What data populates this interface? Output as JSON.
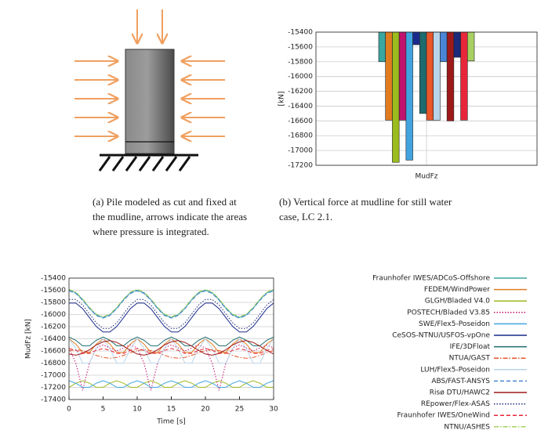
{
  "captions": [
    [
      "(a) Pile modeled as cut and fixed at",
      "the mudline, arrows indicate the areas",
      "where pressure is integrated."
    ],
    [
      "(b) Vertical force at mudline for still water",
      "case, LC 2.1."
    ]
  ],
  "chart_data": [
    {
      "type": "bar",
      "ylabel": "[kN]",
      "categories": [
        "MudFz"
      ],
      "ylim": [
        -17200,
        -15400
      ],
      "yticks": [
        -17200,
        -17000,
        -16800,
        -16600,
        -16400,
        -16200,
        -16000,
        -15800,
        -15600,
        -15400
      ],
      "grid": true,
      "series": [
        {
          "color": "#3aa6a0",
          "values": [
            -15800
          ]
        },
        {
          "color": "#e07b20",
          "values": [
            -16590
          ]
        },
        {
          "color": "#9bbb1e",
          "values": [
            -17160
          ]
        },
        {
          "color": "#c0136e",
          "values": [
            -16590
          ]
        },
        {
          "color": "#41a4e0",
          "values": [
            -17130
          ]
        },
        {
          "color": "#1a2a8c",
          "values": [
            -15570
          ]
        },
        {
          "color": "#1d6b6e",
          "values": [
            -16500
          ]
        },
        {
          "color": "#e8562a",
          "values": [
            -16590
          ]
        },
        {
          "color": "#b8d4ea",
          "values": [
            -16590
          ]
        },
        {
          "color": "#4a86d6",
          "values": [
            -15800
          ]
        },
        {
          "color": "#9e1a1a",
          "values": [
            -16600
          ]
        },
        {
          "color": "#1b2a7a",
          "values": [
            -15740
          ]
        },
        {
          "color": "#e8263a",
          "values": [
            -16590
          ]
        },
        {
          "color": "#a8d060",
          "values": [
            -15790
          ]
        }
      ]
    },
    {
      "type": "line",
      "xlabel": "Time [s]",
      "ylabel": "MudFz [kN]",
      "x": [
        0,
        1,
        2,
        3,
        4,
        5,
        6,
        7,
        8,
        9,
        10,
        11,
        12,
        13,
        14,
        15,
        16,
        17,
        18,
        19,
        20,
        21,
        22,
        23,
        24,
        25,
        26,
        27,
        28,
        29,
        30
      ],
      "xlim": [
        0,
        30
      ],
      "xticks": [
        0,
        5,
        10,
        15,
        20,
        25,
        30
      ],
      "ylim": [
        -17400,
        -15400
      ],
      "yticks": [
        -17400,
        -17200,
        -17000,
        -16800,
        -16600,
        -16400,
        -16200,
        -16000,
        -15800,
        -15600,
        -15400
      ],
      "grid": true,
      "legend": "right",
      "series": [
        {
          "name": "Fraunhofer IWES/ADCoS-Offshore",
          "color": "#3aa6a0",
          "dash": "solid",
          "values": [
            -15600,
            -15643,
            -15755,
            -15895,
            -16007,
            -16050,
            -16007,
            -15895,
            -15755,
            -15643,
            -15600,
            -15643,
            -15755,
            -15895,
            -16007,
            -16050,
            -16007,
            -15895,
            -15755,
            -15643,
            -15600,
            -15643,
            -15755,
            -15895,
            -16007,
            -16050,
            -16007,
            -15895,
            -15755,
            -15643,
            -15600
          ]
        },
        {
          "name": "FEDEM/WindPower",
          "color": "#e07b20",
          "dash": "solid",
          "values": [
            -16400,
            -16486,
            -16626,
            -16626,
            -16486,
            -16400,
            -16486,
            -16626,
            -16626,
            -16486,
            -16400,
            -16486,
            -16626,
            -16626,
            -16486,
            -16400,
            -16486,
            -16626,
            -16626,
            -16486,
            -16400,
            -16486,
            -16626,
            -16626,
            -16486,
            -16400,
            -16486,
            -16626,
            -16626,
            -16486,
            -16400
          ]
        },
        {
          "name": "GLGH/Bladed V4.0",
          "color": "#9bbb1e",
          "dash": "solid",
          "values": [
            -17199,
            -17131,
            -17090,
            -17131,
            -17199,
            -17199,
            -17131,
            -17090,
            -17131,
            -17199,
            -17199,
            -17131,
            -17090,
            -17131,
            -17199,
            -17199,
            -17131,
            -17090,
            -17131,
            -17199,
            -17199,
            -17131,
            -17090,
            -17131,
            -17199,
            -17199,
            -17131,
            -17090,
            -17131,
            -17199,
            -17199
          ]
        },
        {
          "name": "POSTECH/Bladed V3.85",
          "color": "#c0136e",
          "dash": "dotted",
          "values": [
            -16550,
            -16800,
            -17250,
            -16800,
            -16550,
            -16500,
            -16550,
            -16600,
            -16550,
            -16500,
            -16550,
            -16800,
            -17250,
            -16800,
            -16550,
            -16500,
            -16550,
            -16600,
            -16550,
            -16500,
            -16550,
            -16800,
            -17250,
            -16800,
            -16550,
            -16500,
            -16550,
            -16600,
            -16550,
            -16500,
            -16550
          ]
        },
        {
          "name": "SWE/Flex5-Poseidon",
          "color": "#41a4e0",
          "dash": "solid",
          "values": [
            -17090,
            -17131,
            -17199,
            -17199,
            -17131,
            -17090,
            -17131,
            -17199,
            -17199,
            -17131,
            -17090,
            -17131,
            -17199,
            -17199,
            -17131,
            -17090,
            -17131,
            -17199,
            -17199,
            -17131,
            -17090,
            -17131,
            -17199,
            -17199,
            -17131,
            -17090,
            -17131,
            -17199,
            -17199,
            -17131,
            -17090
          ]
        },
        {
          "name": "CeSOS-NTNU/USFOS-vpOne",
          "color": "#1a2a8c",
          "dash": "solid",
          "values": [
            -15812,
            -15812,
            -15903,
            -16050,
            -16197,
            -16288,
            -16288,
            -16197,
            -16050,
            -15903,
            -15812,
            -15812,
            -15903,
            -16050,
            -16197,
            -16288,
            -16288,
            -16197,
            -16050,
            -15903,
            -15812,
            -15812,
            -15903,
            -16050,
            -16197,
            -16288,
            -16288,
            -16197,
            -16050,
            -15903,
            -15812
          ]
        },
        {
          "name": "IFE/3DFloat",
          "color": "#1d6b6e",
          "dash": "solid",
          "values": [
            -16370,
            -16425,
            -16515,
            -16515,
            -16425,
            -16370,
            -16425,
            -16515,
            -16515,
            -16425,
            -16370,
            -16425,
            -16515,
            -16515,
            -16425,
            -16370,
            -16425,
            -16515,
            -16515,
            -16425,
            -16370,
            -16425,
            -16515,
            -16515,
            -16425,
            -16370,
            -16425,
            -16515,
            -16515,
            -16425,
            -16370
          ]
        },
        {
          "name": "NTUA/GAST",
          "color": "#e8562a",
          "dash": "dashdot",
          "values": [
            -16593,
            -16580,
            -16593,
            -16628,
            -16672,
            -16707,
            -16720,
            -16707,
            -16672,
            -16628,
            -16593,
            -16580,
            -16593,
            -16628,
            -16672,
            -16707,
            -16720,
            -16707,
            -16672,
            -16628,
            -16593,
            -16580,
            -16593,
            -16628,
            -16672,
            -16707,
            -16720,
            -16707,
            -16672,
            -16628,
            -16593
          ]
        },
        {
          "name": "LUH/Flex5-Poseidon",
          "color": "#b8d4ea",
          "dash": "solid",
          "values": [
            -16400,
            -16560,
            -16800,
            -16800,
            -16560,
            -16400,
            -16560,
            -16800,
            -16800,
            -16560,
            -16400,
            -16560,
            -16800,
            -16800,
            -16560,
            -16400,
            -16560,
            -16800,
            -16800,
            -16560,
            -16400,
            -16560,
            -16800,
            -16800,
            -16560,
            -16400,
            -16560,
            -16800,
            -16800,
            -16560,
            -16400
          ]
        },
        {
          "name": "ABS/FAST-ANSYS",
          "color": "#4a86d6",
          "dash": "dashed",
          "values": [
            -15610,
            -15653,
            -15765,
            -15905,
            -16017,
            -16060,
            -16017,
            -15905,
            -15765,
            -15653,
            -15610,
            -15653,
            -15765,
            -15905,
            -16017,
            -16060,
            -16017,
            -15905,
            -15765,
            -15653,
            -15610,
            -15653,
            -15765,
            -15905,
            -16017,
            -16060,
            -16017,
            -15905,
            -15765,
            -15653,
            -15610
          ]
        },
        {
          "name": "Risø DTU/HAWC2",
          "color": "#9e1a1a",
          "dash": "solid",
          "values": [
            -16650,
            -16670,
            -16640,
            -16580,
            -16500,
            -16450,
            -16430,
            -16460,
            -16520,
            -16590,
            -16650,
            -16670,
            -16640,
            -16580,
            -16500,
            -16450,
            -16430,
            -16460,
            -16520,
            -16590,
            -16650,
            -16670,
            -16640,
            -16580,
            -16500,
            -16450,
            -16430,
            -16460,
            -16520,
            -16590,
            -16650
          ]
        },
        {
          "name": "REpower/Flex-ASAS",
          "color": "#1b2a7a",
          "dash": "dotted",
          "values": [
            -15752,
            -15752,
            -15843,
            -15990,
            -16137,
            -16228,
            -16228,
            -16137,
            -15990,
            -15843,
            -15752,
            -15752,
            -15843,
            -15990,
            -16137,
            -16228,
            -16228,
            -16137,
            -15990,
            -15843,
            -15752,
            -15752,
            -15843,
            -15990,
            -16137,
            -16228,
            -16228,
            -16137,
            -15990,
            -15843,
            -15752
          ]
        },
        {
          "name": "Fraunhofer IWES/OneWind",
          "color": "#e8263a",
          "dash": "dashed",
          "values": [
            -16560,
            -16590,
            -16640,
            -16640,
            -16590,
            -16560,
            -16590,
            -16640,
            -16640,
            -16590,
            -16560,
            -16590,
            -16640,
            -16640,
            -16590,
            -16560,
            -16590,
            -16640,
            -16640,
            -16590,
            -16560,
            -16590,
            -16640,
            -16640,
            -16590,
            -16560,
            -16590,
            -16640,
            -16640,
            -16590,
            -16560
          ]
        },
        {
          "name": "NTNU/ASHES",
          "color": "#a8d060",
          "dash": "dashdot",
          "values": [
            -15585,
            -15628,
            -15740,
            -15880,
            -15992,
            -16035,
            -15992,
            -15880,
            -15740,
            -15628,
            -15585,
            -15628,
            -15740,
            -15880,
            -15992,
            -16035,
            -15992,
            -15880,
            -15740,
            -15628,
            -15585,
            -15628,
            -15740,
            -15880,
            -15992,
            -16035,
            -15992,
            -15880,
            -15740,
            -15628,
            -15585
          ]
        }
      ]
    }
  ]
}
